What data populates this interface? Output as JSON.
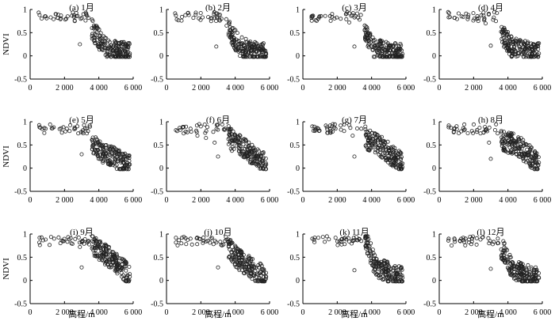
{
  "figure": {
    "ylabel": "NDVI",
    "xlabel": "高程/m"
  },
  "chart_data": [
    {
      "type": "scatter",
      "title": "(a) 1月",
      "xlim": [
        0,
        6000
      ],
      "ylim": [
        -0.5,
        1
      ],
      "xticks": [
        "0",
        "2 000",
        "4 000",
        "6 000"
      ],
      "yticks": [
        "1",
        "0.5",
        "0",
        "-0.5"
      ],
      "anchors": [
        [
          550,
          0.88
        ],
        [
          900,
          0.85
        ],
        [
          1200,
          0.83
        ],
        [
          1500,
          0.9
        ],
        [
          1800,
          0.87
        ],
        [
          2100,
          0.8
        ],
        [
          2600,
          0.75
        ],
        [
          2900,
          0.25
        ],
        [
          3100,
          0.9
        ],
        [
          3400,
          0.82
        ],
        [
          3600,
          0.6
        ],
        [
          4200,
          0.25
        ],
        [
          4800,
          0.12
        ],
        [
          5400,
          0.08
        ],
        [
          5800,
          0.05
        ]
      ]
    },
    {
      "type": "scatter",
      "title": "(b) 2月",
      "xlim": [
        0,
        6000
      ],
      "ylim": [
        -0.5,
        1
      ],
      "xticks": [
        "0",
        "2 000",
        "4 000",
        "6 000"
      ],
      "yticks": [
        "1",
        "0.5",
        "0",
        "-0.5"
      ],
      "anchors": [
        [
          550,
          0.87
        ],
        [
          900,
          0.84
        ],
        [
          1300,
          0.88
        ],
        [
          1700,
          0.89
        ],
        [
          2100,
          0.83
        ],
        [
          2600,
          0.75
        ],
        [
          2900,
          0.2
        ],
        [
          3200,
          0.8
        ],
        [
          3500,
          0.65
        ],
        [
          3800,
          0.45
        ],
        [
          4300,
          0.2
        ],
        [
          4900,
          0.1
        ],
        [
          5400,
          0.06
        ],
        [
          5800,
          0.04
        ]
      ]
    },
    {
      "type": "scatter",
      "title": "(c) 3月",
      "xlim": [
        0,
        6000
      ],
      "ylim": [
        -0.5,
        1
      ],
      "xticks": [
        "0",
        "2 000",
        "4 000",
        "6 000"
      ],
      "yticks": [
        "1",
        "0.5",
        "0",
        "-0.5"
      ],
      "anchors": [
        [
          550,
          0.84
        ],
        [
          900,
          0.8
        ],
        [
          1300,
          0.86
        ],
        [
          1700,
          0.84
        ],
        [
          2200,
          0.8
        ],
        [
          2700,
          0.72
        ],
        [
          3000,
          0.2
        ],
        [
          3300,
          0.78
        ],
        [
          3600,
          0.55
        ],
        [
          4000,
          0.2
        ],
        [
          4600,
          0.1
        ],
        [
          5200,
          0.06
        ],
        [
          5800,
          0.04
        ]
      ]
    },
    {
      "type": "scatter",
      "title": "(d) 4月",
      "xlim": [
        0,
        6000
      ],
      "ylim": [
        -0.5,
        1
      ],
      "xticks": [
        "0",
        "2 000",
        "4 000",
        "6 000"
      ],
      "yticks": [
        "1",
        "0.5",
        "0",
        "-0.5"
      ],
      "anchors": [
        [
          550,
          0.83
        ],
        [
          900,
          0.82
        ],
        [
          1300,
          0.85
        ],
        [
          1700,
          0.88
        ],
        [
          2200,
          0.8
        ],
        [
          2700,
          0.7
        ],
        [
          3000,
          0.22
        ],
        [
          3300,
          0.75
        ],
        [
          3700,
          0.45
        ],
        [
          4200,
          0.2
        ],
        [
          4800,
          0.12
        ],
        [
          5400,
          0.06
        ],
        [
          5800,
          0.05
        ]
      ]
    },
    {
      "type": "scatter",
      "title": "(e) 5月",
      "xlim": [
        0,
        6000
      ],
      "ylim": [
        -0.5,
        1
      ],
      "xticks": [
        "0",
        "2 000",
        "4 000",
        "6 000"
      ],
      "yticks": [
        "1",
        "0.5",
        "0",
        "-0.5"
      ],
      "anchors": [
        [
          550,
          0.88
        ],
        [
          900,
          0.85
        ],
        [
          1300,
          0.86
        ],
        [
          1800,
          0.86
        ],
        [
          2300,
          0.8
        ],
        [
          2800,
          0.75
        ],
        [
          3000,
          0.3
        ],
        [
          3300,
          0.75
        ],
        [
          3700,
          0.5
        ],
        [
          4200,
          0.35
        ],
        [
          4800,
          0.25
        ],
        [
          5400,
          0.12
        ],
        [
          5800,
          0.08
        ]
      ]
    },
    {
      "type": "scatter",
      "title": "(f) 6月",
      "xlim": [
        0,
        6000
      ],
      "ylim": [
        -0.5,
        1
      ],
      "xticks": [
        "0",
        "2 000",
        "4 000",
        "6 000"
      ],
      "yticks": [
        "1",
        "0.5",
        "0",
        "-0.5"
      ],
      "anchors": [
        [
          550,
          0.82
        ],
        [
          1000,
          0.75
        ],
        [
          1400,
          0.85
        ],
        [
          1800,
          0.7
        ],
        [
          2300,
          0.65
        ],
        [
          2800,
          0.55
        ],
        [
          3000,
          0.25
        ],
        [
          3400,
          0.85
        ],
        [
          3800,
          0.6
        ],
        [
          4200,
          0.5
        ],
        [
          4800,
          0.35
        ],
        [
          5400,
          0.18
        ],
        [
          5800,
          0.08
        ]
      ]
    },
    {
      "type": "scatter",
      "title": "(g) 7月",
      "xlim": [
        0,
        6000
      ],
      "ylim": [
        -0.5,
        1
      ],
      "xticks": [
        "0",
        "2 000",
        "4 000",
        "6 000"
      ],
      "yticks": [
        "1",
        "0.5",
        "0",
        "-0.5"
      ],
      "anchors": [
        [
          550,
          0.9
        ],
        [
          900,
          0.85
        ],
        [
          1400,
          0.88
        ],
        [
          1900,
          0.85
        ],
        [
          2400,
          0.8
        ],
        [
          2900,
          0.7
        ],
        [
          3000,
          0.25
        ],
        [
          3400,
          0.85
        ],
        [
          3800,
          0.6
        ],
        [
          4200,
          0.55
        ],
        [
          4800,
          0.4
        ],
        [
          5400,
          0.2
        ],
        [
          5800,
          0.1
        ]
      ]
    },
    {
      "type": "scatter",
      "title": "(h) 8月",
      "xlim": [
        0,
        6000
      ],
      "ylim": [
        -0.5,
        1
      ],
      "xticks": [
        "0",
        "2 000",
        "4 000",
        "6 000"
      ],
      "yticks": [
        "1",
        "0.5",
        "0",
        "-0.5"
      ],
      "anchors": [
        [
          550,
          0.88
        ],
        [
          900,
          0.86
        ],
        [
          1400,
          0.86
        ],
        [
          1900,
          0.8
        ],
        [
          2400,
          0.75
        ],
        [
          2900,
          0.55
        ],
        [
          3000,
          0.2
        ],
        [
          3400,
          0.75
        ],
        [
          3800,
          0.55
        ],
        [
          4200,
          0.55
        ],
        [
          4800,
          0.42
        ],
        [
          5400,
          0.22
        ],
        [
          5800,
          0.12
        ]
      ]
    },
    {
      "type": "scatter",
      "title": "(i) 9月",
      "xlim": [
        0,
        6000
      ],
      "ylim": [
        -0.5,
        1
      ],
      "xticks": [
        "0",
        "2 000",
        "4 000",
        "6 000"
      ],
      "yticks": [
        "1",
        "0.5",
        "0",
        "-0.5"
      ],
      "anchors": [
        [
          550,
          0.92
        ],
        [
          900,
          0.88
        ],
        [
          1400,
          0.9
        ],
        [
          1900,
          0.85
        ],
        [
          2400,
          0.8
        ],
        [
          2900,
          0.72
        ],
        [
          3000,
          0.28
        ],
        [
          3400,
          0.85
        ],
        [
          3800,
          0.7
        ],
        [
          4200,
          0.6
        ],
        [
          4800,
          0.45
        ],
        [
          5400,
          0.25
        ],
        [
          5800,
          0.08
        ]
      ]
    },
    {
      "type": "scatter",
      "title": "(j) 10月",
      "xlim": [
        0,
        6000
      ],
      "ylim": [
        -0.5,
        1
      ],
      "xticks": [
        "0",
        "2 000",
        "4 000",
        "6 000"
      ],
      "yticks": [
        "1",
        "0.5",
        "0",
        "-0.5"
      ],
      "anchors": [
        [
          550,
          0.92
        ],
        [
          900,
          0.92
        ],
        [
          1400,
          0.9
        ],
        [
          1900,
          0.9
        ],
        [
          2400,
          0.85
        ],
        [
          2900,
          0.82
        ],
        [
          3000,
          0.28
        ],
        [
          3400,
          0.85
        ],
        [
          3800,
          0.6
        ],
        [
          4200,
          0.45
        ],
        [
          4800,
          0.3
        ],
        [
          5400,
          0.15
        ],
        [
          5800,
          0.08
        ]
      ]
    },
    {
      "type": "scatter",
      "title": "(k) 11月",
      "xlim": [
        0,
        6000
      ],
      "ylim": [
        -0.5,
        1
      ],
      "xticks": [
        "0",
        "2 000",
        "4 000",
        "6 000"
      ],
      "yticks": [
        "1",
        "0.5",
        "0",
        "-0.5"
      ],
      "anchors": [
        [
          550,
          0.9
        ],
        [
          900,
          0.92
        ],
        [
          1400,
          0.95
        ],
        [
          1900,
          0.92
        ],
        [
          2400,
          0.9
        ],
        [
          2900,
          0.85
        ],
        [
          3000,
          0.22
        ],
        [
          3400,
          0.85
        ],
        [
          3800,
          0.75
        ],
        [
          4200,
          0.3
        ],
        [
          4800,
          0.2
        ],
        [
          5400,
          0.1
        ],
        [
          5800,
          0.06
        ]
      ]
    },
    {
      "type": "scatter",
      "title": "(l) 12月",
      "xlim": [
        0,
        6000
      ],
      "ylim": [
        -0.5,
        1
      ],
      "xticks": [
        "0",
        "2 000",
        "4 000",
        "6 000"
      ],
      "yticks": [
        "1",
        "0.5",
        "0",
        "-0.5"
      ],
      "anchors": [
        [
          550,
          0.9
        ],
        [
          900,
          0.88
        ],
        [
          1400,
          0.92
        ],
        [
          1900,
          0.9
        ],
        [
          2400,
          0.88
        ],
        [
          2900,
          0.8
        ],
        [
          3000,
          0.25
        ],
        [
          3400,
          0.8
        ],
        [
          3800,
          0.6
        ],
        [
          4200,
          0.25
        ],
        [
          4800,
          0.15
        ],
        [
          5400,
          0.08
        ],
        [
          5800,
          0.05
        ]
      ]
    }
  ]
}
